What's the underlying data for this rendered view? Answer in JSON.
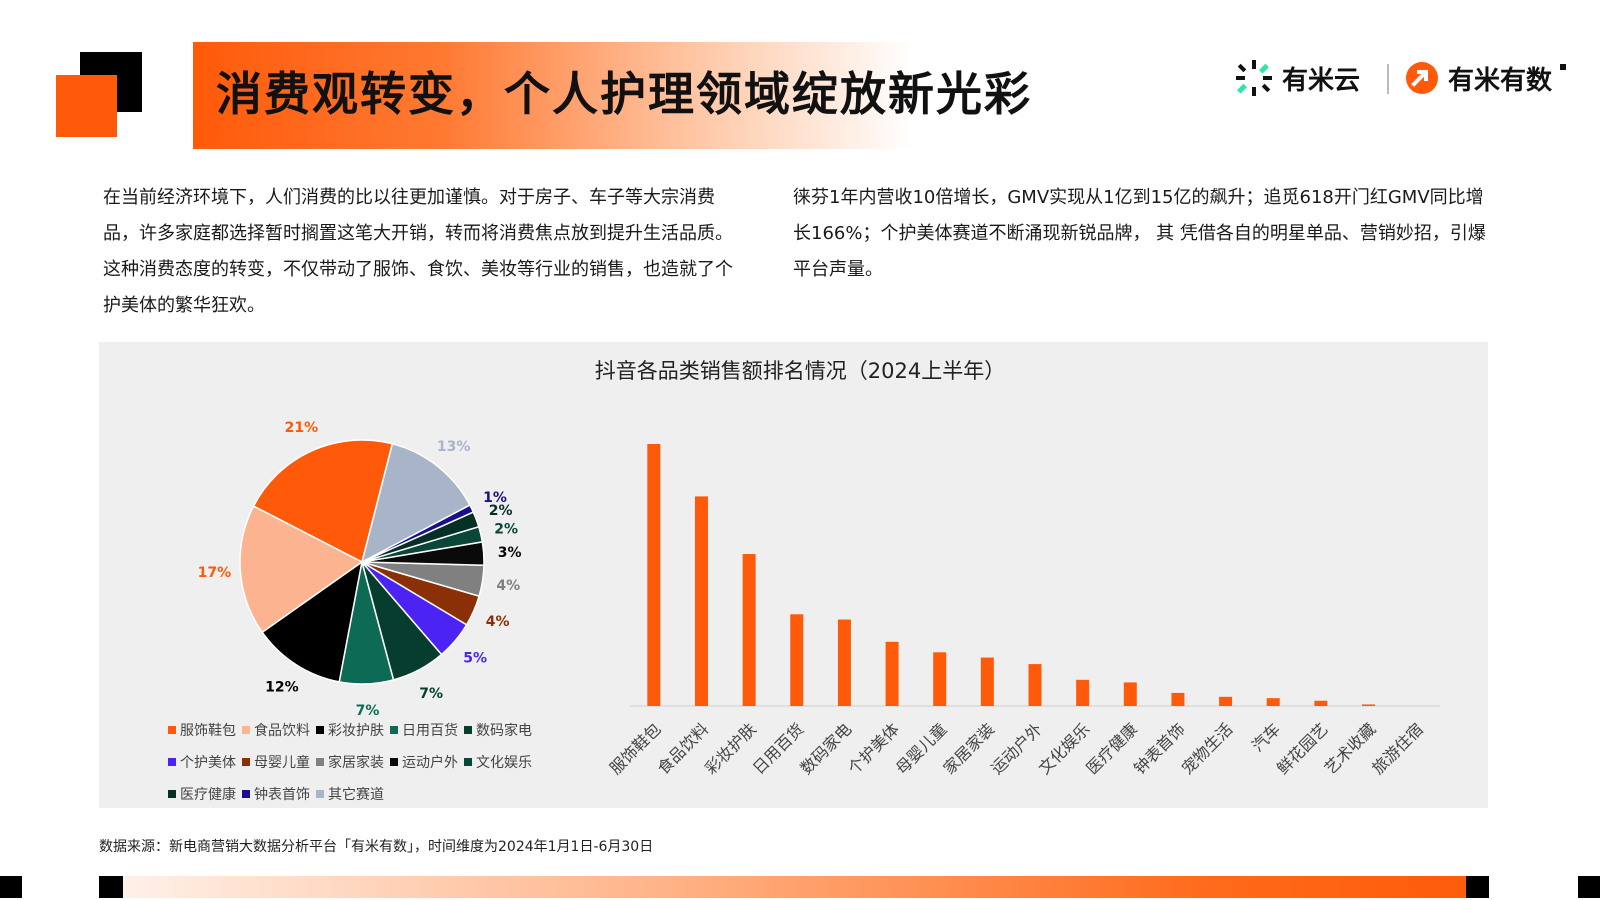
{
  "header": {
    "title": "消费观转变，个人护理领域绽放新光彩",
    "logo_a": "有米云",
    "logo_b": "有米有数"
  },
  "paragraphs": {
    "left": "在当前经济环境下，人们消费的比以往更加谨慎。对于房子、车子等大宗消费品，许多家庭都选择暂时搁置这笔大开销，转而将消费焦点放到提升生活品质。这种消费态度的转变，不仅带动了服饰、食饮、美妆等行业的销售，也造就了个护美体的繁华狂欢。",
    "right": "徕芬1年内营收10倍增长，GMV实现从1亿到15亿的飙升；追觅618开门红GMV同比增长166%；个护美体赛道不断涌现新锐品牌， 其 凭借各自的明星单品、营销妙招，引爆平台声量。"
  },
  "chart_title": "抖音各品类销售额排名情况（2024上半年）",
  "source": "数据来源：新电商营销大数据分析平台「有米有数」，时间维度为2024年1月1日-6月30日",
  "colors": {
    "accent": "#ff5a0a",
    "black": "#000000",
    "panel": "#efefef"
  },
  "chart_data": [
    {
      "type": "pie",
      "categories": [
        "服饰鞋包",
        "食品饮料",
        "彩妆护肤",
        "日用百货",
        "数码家电",
        "个护美体",
        "母婴儿童",
        "家居家装",
        "运动户外",
        "文化娱乐",
        "医疗健康",
        "钟表首饰",
        "其它赛道"
      ],
      "values": [
        21,
        17,
        12,
        7,
        7,
        5,
        4,
        4,
        3,
        2,
        2,
        1,
        13
      ],
      "labels": [
        "21%",
        "17%",
        "12%",
        "7%",
        "7%",
        "5%",
        "4%",
        "4%",
        "3%",
        "2%",
        "2%",
        "1%",
        "13%"
      ],
      "colors": [
        "#ff5a0a",
        "#fbb48f",
        "#000000",
        "#0d6b55",
        "#073d2f",
        "#4b24f4",
        "#8b2f06",
        "#808080",
        "#0a0a0a",
        "#0b4738",
        "#063026",
        "#1a0f8a",
        "#a8b4c8"
      ],
      "legend": "bottom"
    },
    {
      "type": "bar",
      "categories": [
        "服饰鞋包",
        "食品饮料",
        "彩妆护肤",
        "日用百货",
        "数码家电",
        "个护美体",
        "母婴儿童",
        "家居家装",
        "运动户外",
        "文化娱乐",
        "医疗健康",
        "钟表首饰",
        "宠物生活",
        "汽车",
        "鲜花园艺",
        "艺术收藏",
        "旅游住宿"
      ],
      "values": [
        100,
        80,
        58,
        35,
        33,
        24.5,
        20.5,
        18.5,
        16,
        10,
        9,
        5,
        3.5,
        3,
        2,
        0.6,
        0
      ],
      "color": "#ff5a0a",
      "ylim": [
        0,
        100
      ]
    }
  ]
}
